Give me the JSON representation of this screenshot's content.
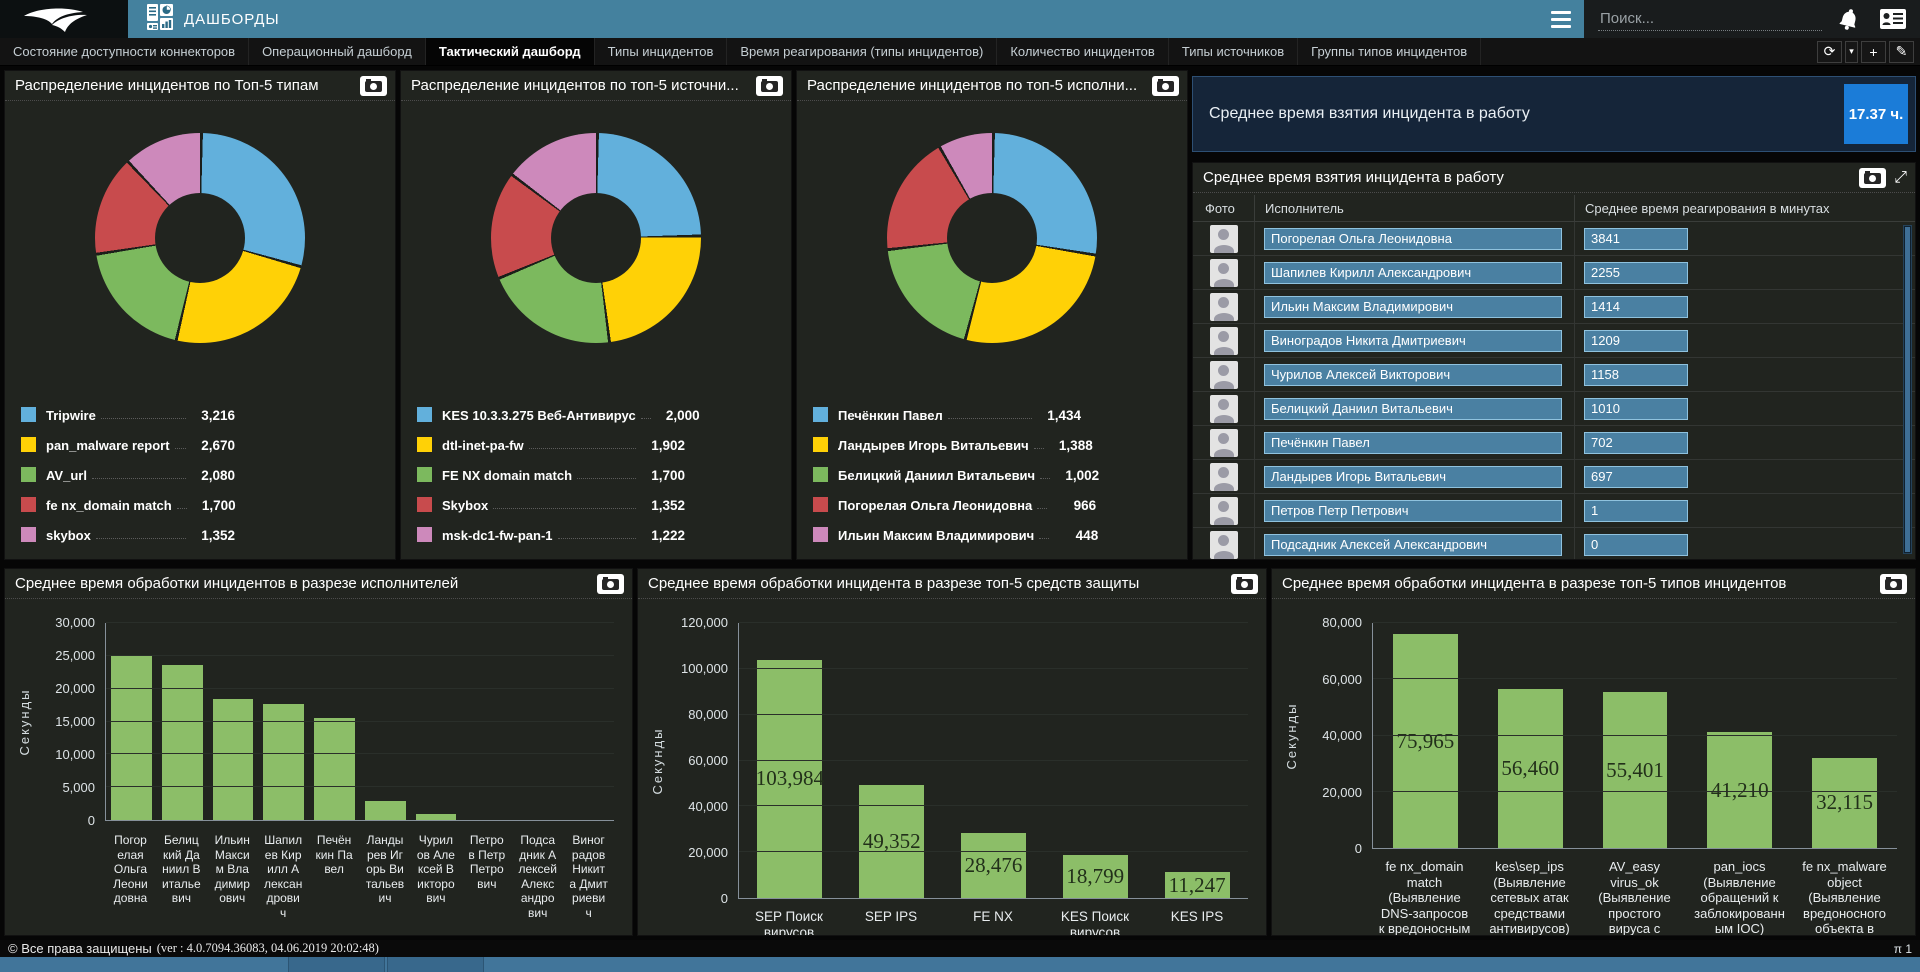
{
  "header": {
    "app_title": "ДАШБОРДЫ",
    "search_placeholder": "Поиск..."
  },
  "icons": {
    "refresh": "⟳",
    "caret": "▾",
    "add": "+",
    "edit": "✎",
    "expand": "⤢"
  },
  "tabs": [
    {
      "label": "Состояние доступности коннекторов",
      "active": false
    },
    {
      "label": "Операционный дашборд",
      "active": false
    },
    {
      "label": "Тактический дашборд",
      "active": true
    },
    {
      "label": "Типы инцидентов",
      "active": false
    },
    {
      "label": "Время реагирования (типы инцидентов)",
      "active": false
    },
    {
      "label": "Количество инцидентов",
      "active": false
    },
    {
      "label": "Типы источников",
      "active": false
    },
    {
      "label": "Группы типов инцидентов",
      "active": false
    }
  ],
  "stat_card": {
    "label": "Среднее время взятия инцидента в работу",
    "value": "17.37 ч."
  },
  "reaction_table": {
    "title": "Среднее время взятия инцидента в работу",
    "columns": [
      "Фото",
      "Исполнитель",
      "Среднее время реагирования в минутах"
    ],
    "rows": [
      {
        "name": "Погорелая Ольга Леонидовна",
        "value": "3841"
      },
      {
        "name": "Шапилев Кирилл Александрович",
        "value": "2255"
      },
      {
        "name": "Ильин Максим Владимирович",
        "value": "1414"
      },
      {
        "name": "Виноградов Никита Дмитриевич",
        "value": "1209"
      },
      {
        "name": "Чурилов Алексей Викторович",
        "value": "1158"
      },
      {
        "name": "Белицкий Даниил Витальевич",
        "value": "1010"
      },
      {
        "name": "Печёнкин Павел",
        "value": "702"
      },
      {
        "name": "Ландырев Игорь Витальевич",
        "value": "697"
      },
      {
        "name": "Петров Петр Петрович",
        "value": "1"
      },
      {
        "name": "Подсадник Алексей Александрович",
        "value": "0"
      }
    ]
  },
  "chart_data": [
    {
      "type": "pie",
      "title": "Распределение инцидентов по Топ-5 типам",
      "labels": [
        "Tripwire",
        "pan_malware report",
        "AV_url",
        "fe nx_domain match",
        "skybox"
      ],
      "values": [
        3216,
        2670,
        2080,
        1700,
        1352
      ],
      "display_values": [
        "3,216",
        "2,670",
        "2,080",
        "1,700",
        "1,352"
      ],
      "colors": [
        "#62b0dc",
        "#ffd106",
        "#7cb95e",
        "#c84b4d",
        "#cd89bb"
      ]
    },
    {
      "type": "pie",
      "title": "Распределение инцидентов по топ-5 источни...",
      "labels": [
        "KES 10.3.3.275 Веб-Антивирус",
        "dtl-inet-pa-fw",
        "FE NX domain match",
        "Skybox",
        "msk-dc1-fw-pan-1"
      ],
      "values": [
        2000,
        1902,
        1700,
        1352,
        1222
      ],
      "display_values": [
        "2,000",
        "1,902",
        "1,700",
        "1,352",
        "1,222"
      ],
      "colors": [
        "#62b0dc",
        "#ffd106",
        "#7cb95e",
        "#c84b4d",
        "#cd89bb"
      ]
    },
    {
      "type": "pie",
      "title": "Распределение инцидентов по топ-5 исполни...",
      "labels": [
        "Печёнкин Павел",
        "Ландырев Игорь Витальевич",
        "Белицкий Даниил Витальевич",
        "Погорелая Ольга Леонидовна",
        "Ильин Максим Владимирович"
      ],
      "values": [
        1434,
        1388,
        1002,
        966,
        448
      ],
      "display_values": [
        "1,434",
        "1,388",
        "1,002",
        "966",
        "448"
      ],
      "colors": [
        "#62b0dc",
        "#ffd106",
        "#7cb95e",
        "#c84b4d",
        "#cd89bb"
      ]
    },
    {
      "type": "bar",
      "title": "Среднее время обработки инцидентов в разрезе исполнителей",
      "ylabel": "Секунды",
      "ylim": [
        0,
        30000
      ],
      "ytick_step": 5000,
      "categories": [
        "Погорелая Ольга Леонидовна",
        "Белицкий Даниил Витальевич",
        "Ильин Максим Владимирович",
        "Шапилев Кирилл Александрович",
        "Печёнкин Павел",
        "Ландырев Игорь Витальевич",
        "Чурилов Алексей Викторович",
        "Петров Петр Петрович",
        "Подсадник Алексей Александрович",
        "Виноградов Никита Дмитриевич"
      ],
      "values": [
        24950,
        23650,
        18400,
        17650,
        15480,
        2970,
        860,
        0,
        0,
        0
      ],
      "display_values": [
        "24,950",
        "23,650",
        "18,400",
        "17,650",
        "15,480",
        "2,970",
        "860",
        "0",
        "0",
        "0"
      ],
      "show_value_labels": false,
      "bar_color": "#8cbe68"
    },
    {
      "type": "bar",
      "title": "Среднее время обработки инцидента в разрезе топ-5 средств защиты",
      "ylabel": "Секунды",
      "ylim": [
        0,
        120000
      ],
      "ytick_step": 20000,
      "categories": [
        "SEP Поиск вирусов",
        "SEP IPS",
        "FE NX",
        "KES Поиск вирусов",
        "KES IPS"
      ],
      "values": [
        103984,
        49352,
        28476,
        18799,
        11247
      ],
      "display_values": [
        "103,984",
        "49,352",
        "28,476",
        "18,799",
        "11,247"
      ],
      "show_value_labels": true,
      "bar_color": "#8cbe68"
    },
    {
      "type": "bar",
      "title": "Среднее время обработки инцидента в разрезе топ-5 типов инцидентов",
      "ylabel": "Секунды",
      "ylim": [
        0,
        80000
      ],
      "ytick_step": 20000,
      "categories": [
        "fe nx_domain match (Выявление DNS-запросов к вредоносным ресурсам)",
        "kes\\sep_ips (Выявление сетевых атак средствами антивирусов)",
        "AV_easy virus_ok (Выявление простого вируса с успешным",
        "pan_iocs (Выявление обращений к заблокированным IOC)",
        "fe nx_malware object (Выявление вредоносного объекта в сетевом"
      ],
      "values": [
        75965,
        56460,
        55401,
        41210,
        32115
      ],
      "display_values": [
        "75,965",
        "56,460",
        "55,401",
        "41,210",
        "32,115"
      ],
      "show_value_labels": true,
      "bar_color": "#8cbe68"
    }
  ],
  "footer": {
    "copyright": "© Все права защищены",
    "version": "(ver : 4.0.7094.36083, 04.06.2019 20:02:48)",
    "page_indicator": "π 1"
  }
}
